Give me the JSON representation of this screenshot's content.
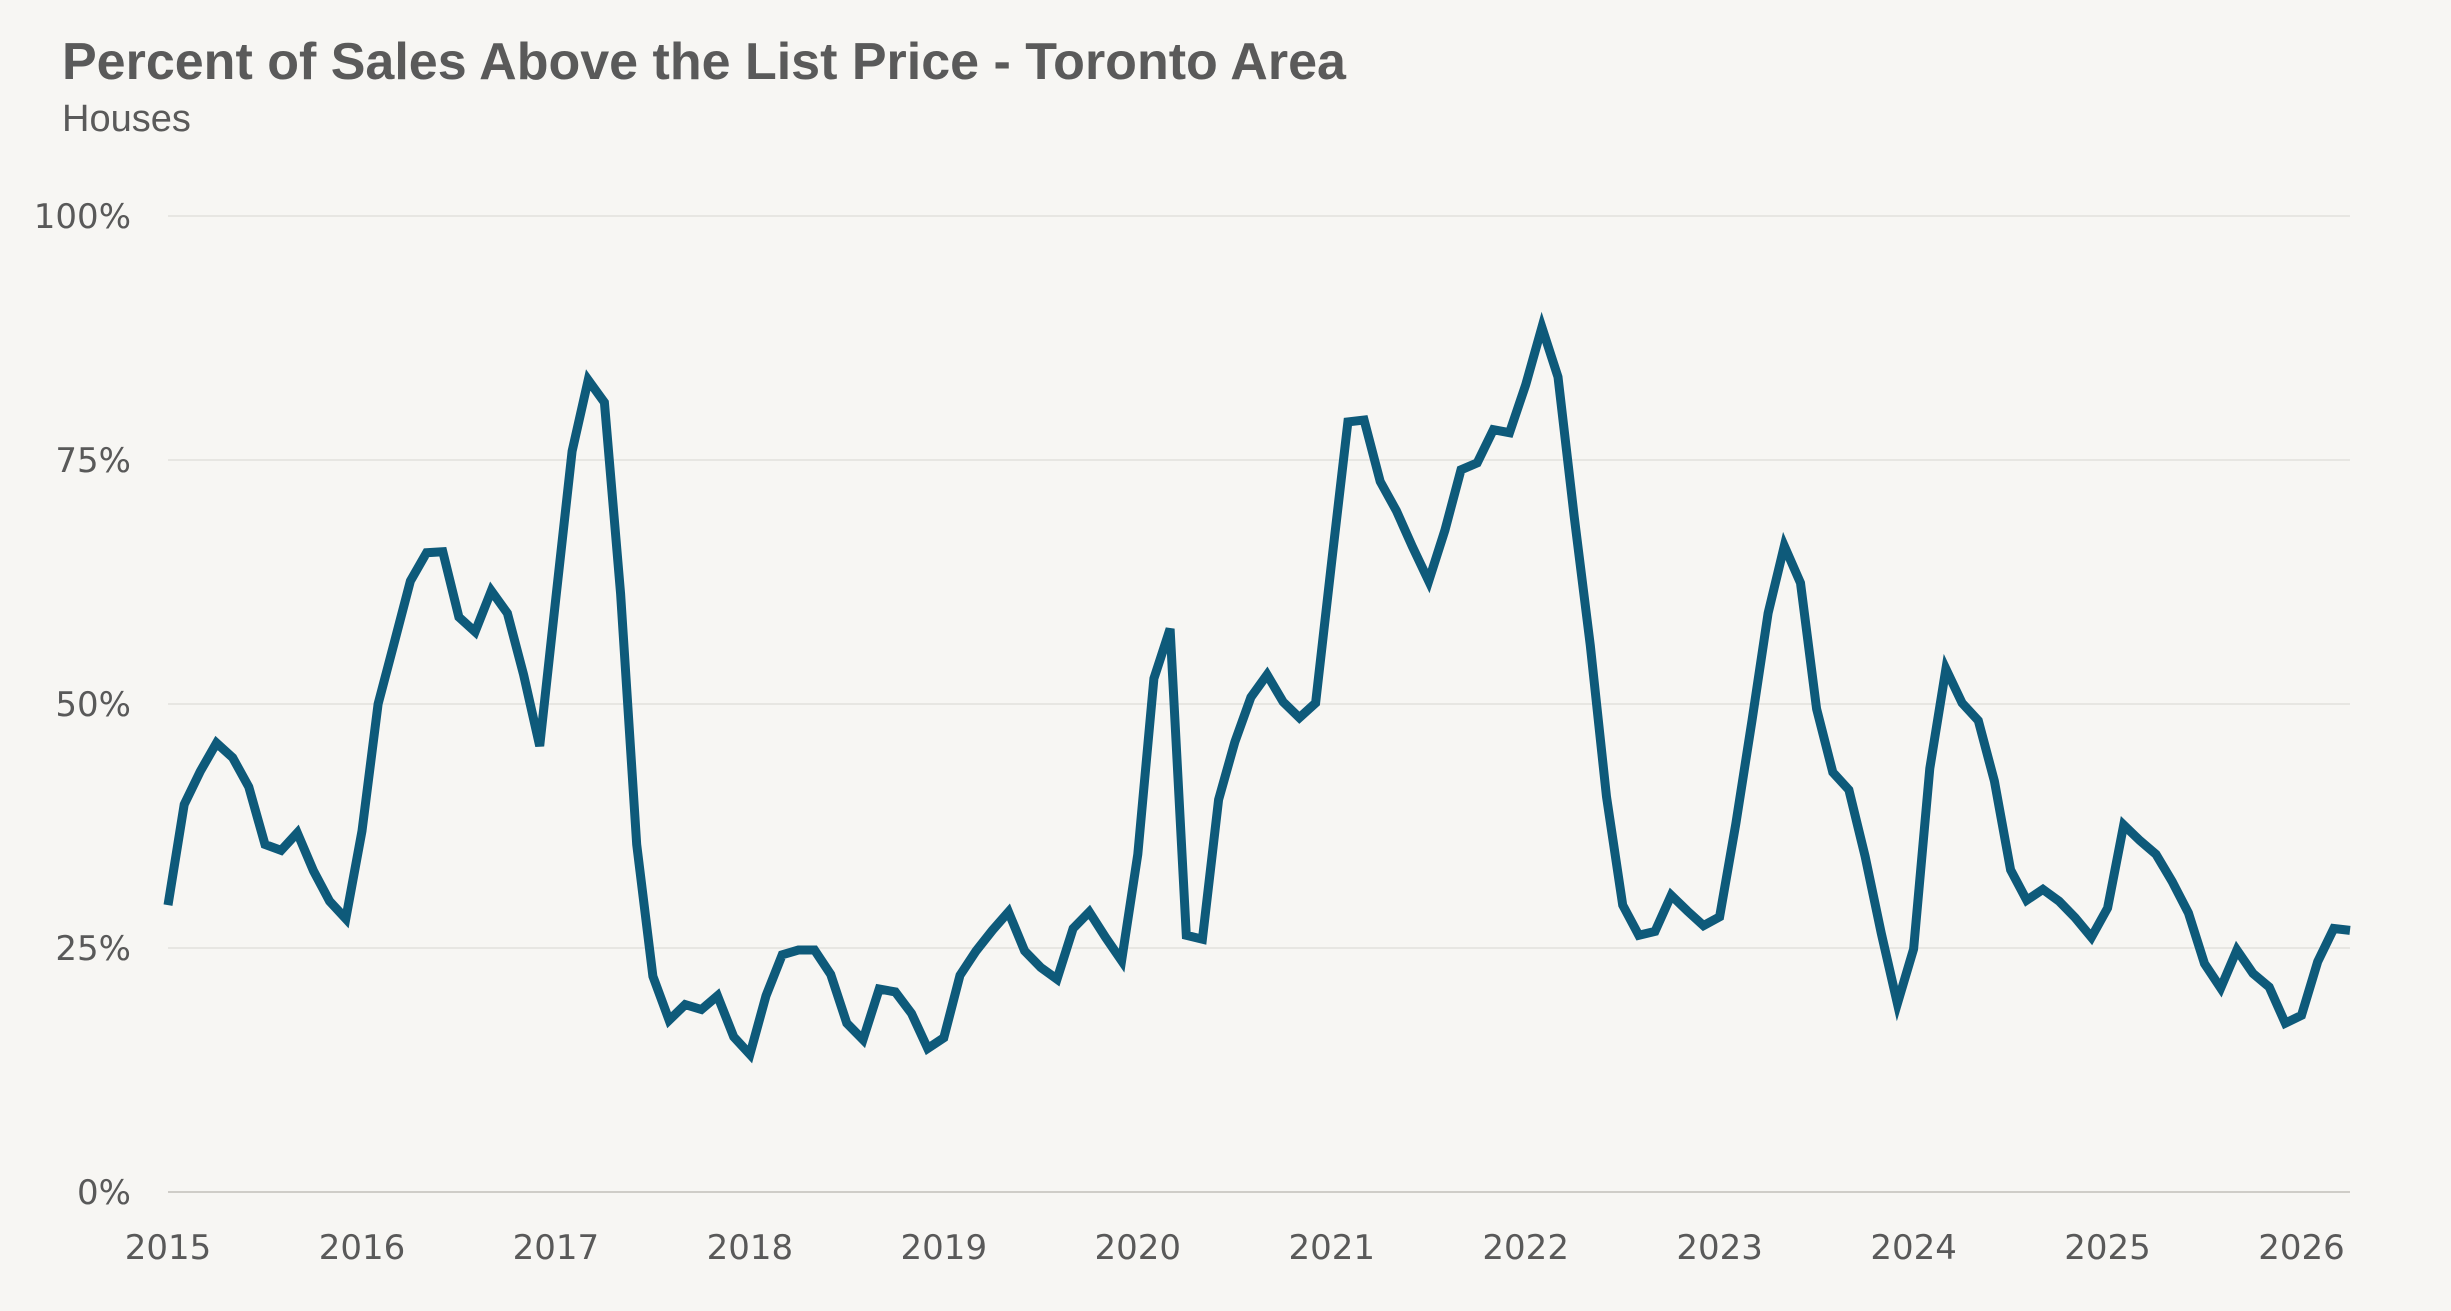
{
  "chart_data": {
    "type": "line",
    "title": "Percent of Sales Above the List Price - Toronto Area",
    "subtitle": "Houses",
    "xlabel": "",
    "ylabel": "",
    "x_ticks": [
      "2015",
      "2016",
      "2017",
      "2018",
      "2019",
      "2020",
      "2021",
      "2022",
      "2023",
      "2024",
      "2025",
      "2026"
    ],
    "y_ticks": [
      "0%",
      "25%",
      "50%",
      "75%",
      "100%"
    ],
    "y_tick_values": [
      0,
      25,
      50,
      75,
      100
    ],
    "ylim": [
      0,
      100
    ],
    "xlim": [
      "2015-01",
      "2026-04"
    ],
    "grid": "horizontal",
    "line_color": "#0e5a7a",
    "grid_color": "#e2e0dc",
    "x": [
      "2015-01",
      "2015-02",
      "2015-03",
      "2015-04",
      "2015-05",
      "2015-06",
      "2015-07",
      "2015-08",
      "2015-09",
      "2015-10",
      "2015-11",
      "2015-12",
      "2016-01",
      "2016-02",
      "2016-03",
      "2016-04",
      "2016-05",
      "2016-06",
      "2016-07",
      "2016-08",
      "2016-09",
      "2016-10",
      "2016-11",
      "2016-12",
      "2017-01",
      "2017-02",
      "2017-03",
      "2017-04",
      "2017-05",
      "2017-06",
      "2017-07",
      "2017-08",
      "2017-09",
      "2017-10",
      "2017-11",
      "2017-12",
      "2018-01",
      "2018-02",
      "2018-03",
      "2018-04",
      "2018-05",
      "2018-06",
      "2018-07",
      "2018-08",
      "2018-09",
      "2018-10",
      "2018-11",
      "2018-12",
      "2019-01",
      "2019-02",
      "2019-03",
      "2019-04",
      "2019-05",
      "2019-06",
      "2019-07",
      "2019-08",
      "2019-09",
      "2019-10",
      "2019-11",
      "2019-12",
      "2020-01",
      "2020-02",
      "2020-03",
      "2020-04",
      "2020-05",
      "2020-06",
      "2020-07",
      "2020-08",
      "2020-09",
      "2020-10",
      "2020-11",
      "2020-12",
      "2021-01",
      "2021-02",
      "2021-03",
      "2021-04",
      "2021-05",
      "2021-06",
      "2021-07",
      "2021-08",
      "2021-09",
      "2021-10",
      "2021-11",
      "2021-12",
      "2022-01",
      "2022-02",
      "2022-03",
      "2022-04",
      "2022-05",
      "2022-06",
      "2022-07",
      "2022-08",
      "2022-09",
      "2022-10",
      "2022-11",
      "2022-12",
      "2023-01",
      "2023-02",
      "2023-03",
      "2023-04",
      "2023-05",
      "2023-06",
      "2023-07",
      "2023-08",
      "2023-09",
      "2023-10",
      "2023-11",
      "2023-12",
      "2024-01",
      "2024-02",
      "2024-03",
      "2024-04",
      "2024-05",
      "2024-06",
      "2024-07",
      "2024-08",
      "2024-09",
      "2024-10",
      "2024-11",
      "2024-12",
      "2025-01",
      "2025-02",
      "2025-03",
      "2025-04",
      "2025-05",
      "2025-06",
      "2025-07",
      "2025-08",
      "2025-09",
      "2025-10",
      "2025-11",
      "2025-12",
      "2026-01",
      "2026-02",
      "2026-03",
      "2026-04"
    ],
    "series": [
      {
        "values": [
          29.4,
          39.7,
          43.1,
          46.0,
          44.5,
          41.5,
          35.6,
          35.0,
          36.8,
          32.9,
          29.8,
          28.0,
          37.0,
          50.0,
          56.3,
          62.6,
          65.5,
          65.6,
          58.9,
          57.4,
          61.6,
          59.3,
          53.0,
          45.7,
          60.9,
          75.9,
          83.2,
          80.9,
          61.3,
          35.6,
          22.1,
          17.6,
          19.2,
          18.7,
          20.1,
          15.9,
          14.1,
          20.1,
          24.3,
          24.8,
          24.8,
          22.3,
          17.3,
          15.6,
          20.8,
          20.5,
          18.3,
          14.7,
          15.8,
          22.2,
          24.7,
          26.8,
          28.7,
          24.7,
          23.0,
          21.8,
          27.0,
          28.7,
          26.1,
          23.7,
          34.6,
          52.6,
          57.7,
          26.3,
          25.9,
          40.2,
          46.1,
          50.7,
          53.0,
          50.2,
          48.6,
          50.1,
          64.6,
          78.9,
          79.1,
          72.8,
          69.8,
          66.1,
          62.6,
          67.8,
          74.0,
          74.7,
          78.1,
          77.8,
          82.7,
          88.6,
          83.5,
          69.2,
          56.0,
          40.5,
          29.4,
          26.3,
          26.7,
          30.4,
          28.8,
          27.3,
          28.2,
          37.7,
          48.3,
          59.3,
          66.2,
          62.4,
          49.5,
          43.0,
          41.2,
          34.4,
          26.5,
          19.3,
          24.9,
          43.4,
          53.6,
          50.1,
          48.3,
          42.1,
          33.0,
          29.9,
          31.0,
          29.8,
          28.1,
          26.1,
          29.1,
          37.6,
          36.0,
          34.6,
          31.8,
          28.6,
          23.4,
          20.9,
          24.8,
          22.4,
          21.0,
          17.3,
          18.1,
          23.6,
          27.0,
          26.8
        ]
      }
    ]
  }
}
